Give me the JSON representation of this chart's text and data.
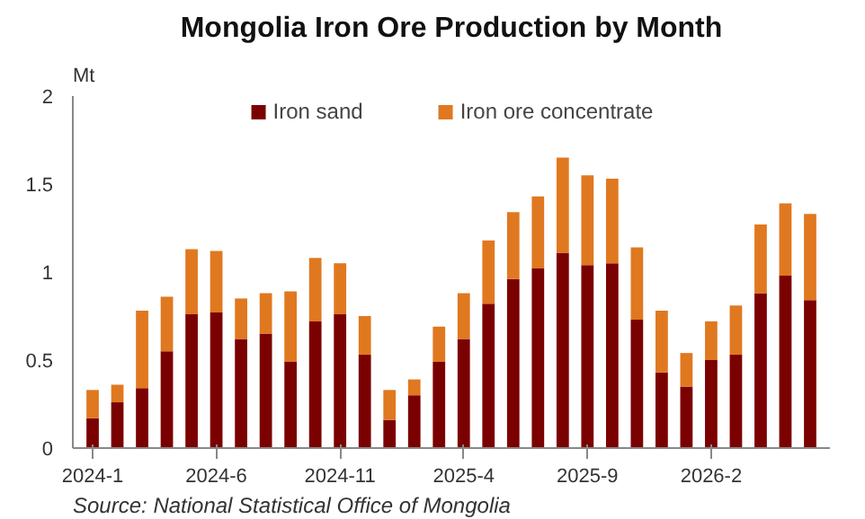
{
  "chart_data": {
    "type": "bar",
    "title": "Mongolia Iron Ore Production by Month",
    "ylabel": "Mt",
    "stacked": true,
    "legend": "top",
    "grid": false,
    "categories": [
      "2024-1",
      null,
      null,
      null,
      null,
      "2024-6",
      null,
      null,
      null,
      null,
      "2024-11",
      null,
      null,
      null,
      null,
      "2025-4",
      null,
      null,
      null,
      null,
      "2025-9",
      null,
      null,
      null,
      null,
      "2026-2",
      null,
      null,
      null,
      null
    ],
    "series": [
      {
        "name": "Iron sand",
        "color": "#7b0000",
        "values": [
          0.17,
          0.26,
          0.34,
          0.55,
          0.76,
          0.77,
          0.62,
          0.65,
          0.49,
          0.72,
          0.76,
          0.53,
          0.16,
          0.3,
          0.49,
          0.62,
          0.82,
          0.96,
          1.02,
          1.11,
          1.04,
          1.05,
          0.73,
          0.43,
          0.35,
          0.5,
          0.53,
          0.88,
          0.98,
          0.84
        ]
      },
      {
        "name": "Iron ore concentrate",
        "color": "#e07820",
        "values": [
          0.16,
          0.1,
          0.44,
          0.31,
          0.37,
          0.35,
          0.23,
          0.23,
          0.4,
          0.36,
          0.29,
          0.22,
          0.17,
          0.09,
          0.2,
          0.26,
          0.36,
          0.38,
          0.41,
          0.54,
          0.51,
          0.48,
          0.41,
          0.35,
          0.19,
          0.22,
          0.28,
          0.39,
          0.41,
          0.49
        ]
      }
    ],
    "ylim": [
      0,
      2
    ],
    "yticks": [
      0,
      0.5,
      1,
      1.5,
      2
    ],
    "annotations": [
      "Source: National Statistical Office of Mongolia"
    ]
  }
}
